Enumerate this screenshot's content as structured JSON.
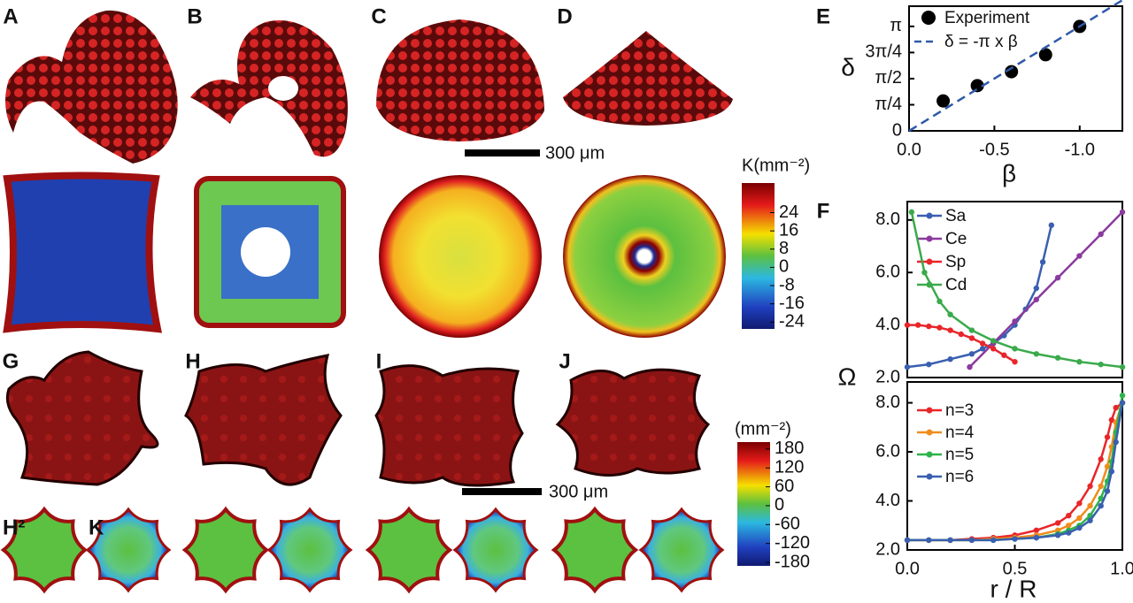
{
  "panel_labels": [
    "A",
    "B",
    "C",
    "D",
    "E",
    "F",
    "G",
    "H",
    "I",
    "J"
  ],
  "scale_bars": [
    "300 μm",
    "300 μm"
  ],
  "subpanel_labels": [
    "H²",
    "K"
  ],
  "colorbars": [
    {
      "title": "K(mm⁻²)",
      "lim": [
        -27,
        37
      ],
      "ticks": [
        24,
        16,
        8,
        0,
        -8,
        -16,
        -24
      ]
    },
    {
      "title": "(mm⁻²)",
      "lim": [
        -191,
        202
      ],
      "ticks": [
        180,
        120,
        60,
        0,
        -60,
        -120,
        -180
      ]
    }
  ],
  "chart_data": [
    {
      "type": "scatter",
      "x_label": "β",
      "y_label": "δ",
      "xlim": [
        0,
        -1.25
      ],
      "ylim": [
        0,
        3.75
      ],
      "xticks": [
        {
          "value": 0,
          "label": "0.0"
        },
        -0.5,
        {
          "value": -1,
          "label": "-1.0"
        }
      ],
      "yticks": [
        0,
        {
          "value": 0.785,
          "label": "π/4"
        },
        {
          "value": 1.571,
          "label": "π/2"
        },
        {
          "value": 2.356,
          "label": "3π/4"
        },
        {
          "value": 3.142,
          "label": "π"
        }
      ],
      "series": [
        {
          "name": "Experiment",
          "color": "#000000",
          "x": [
            -0.2,
            -0.4,
            -0.6,
            -0.8,
            -1.0
          ],
          "values": [
            0.9,
            1.36,
            1.78,
            2.29,
            3.14
          ]
        },
        {
          "name": "δ = -π x β",
          "color": "#2f5aa8",
          "line_style": "dashed",
          "x": [
            0,
            -1.25
          ],
          "values": [
            0,
            3.93
          ]
        }
      ]
    },
    {
      "type": "line",
      "xlim": [
        0,
        1
      ],
      "ylim": [
        2,
        8.7
      ],
      "yticks": [
        {
          "value": 2,
          "label": "2.0"
        },
        {
          "value": 4,
          "label": "4.0"
        },
        {
          "value": 6,
          "label": "6.0"
        },
        {
          "value": 8,
          "label": "8.0"
        }
      ],
      "series": [
        {
          "name": "Sa",
          "color": "#3a5fb0",
          "x": [
            0,
            0.1,
            0.2,
            0.3,
            0.35,
            0.4,
            0.45,
            0.5,
            0.55,
            0.6,
            0.63,
            0.67
          ],
          "values": [
            2.4,
            2.5,
            2.7,
            2.9,
            3.1,
            3.3,
            3.6,
            4.0,
            4.6,
            5.4,
            6.4,
            7.8
          ]
        },
        {
          "name": "Ce",
          "color": "#8b3a9e",
          "x": [
            0.29,
            0.4,
            0.5,
            0.6,
            0.7,
            0.8,
            0.9,
            1.0
          ],
          "values": [
            2.4,
            3.31,
            4.14,
            4.97,
            5.8,
            6.63,
            7.46,
            8.3
          ]
        },
        {
          "name": "Sp",
          "color": "#e8262a",
          "x": [
            0,
            0.05,
            0.1,
            0.15,
            0.2,
            0.25,
            0.3,
            0.35,
            0.4,
            0.45,
            0.5
          ],
          "values": [
            4.0,
            4.0,
            3.95,
            3.9,
            3.8,
            3.65,
            3.5,
            3.3,
            3.1,
            2.85,
            2.6
          ]
        },
        {
          "name": "Cd",
          "color": "#3aaa4c",
          "x": [
            0.02,
            0.08,
            0.15,
            0.2,
            0.3,
            0.4,
            0.5,
            0.6,
            0.7,
            0.8,
            0.9,
            1.0
          ],
          "values": [
            8.3,
            6.0,
            4.9,
            4.4,
            3.8,
            3.4,
            3.1,
            2.9,
            2.75,
            2.6,
            2.5,
            2.4
          ]
        }
      ]
    },
    {
      "type": "line",
      "x_label": "r / R",
      "y_label": "Ω",
      "xlim": [
        0,
        1
      ],
      "ylim": [
        2,
        8.85
      ],
      "xticks": [
        {
          "value": 0,
          "label": "0.0"
        },
        0.5,
        {
          "value": 1,
          "label": "1.0"
        }
      ],
      "yticks": [
        {
          "value": 2,
          "label": "2.0"
        },
        {
          "value": 4,
          "label": "4.0"
        },
        {
          "value": 6,
          "label": "6.0"
        },
        {
          "value": 8,
          "label": "8.0"
        }
      ],
      "series": [
        {
          "name": "n=3",
          "color": "#e8262a",
          "x": [
            0,
            0.1,
            0.2,
            0.3,
            0.4,
            0.5,
            0.6,
            0.7,
            0.75,
            0.8,
            0.85,
            0.9,
            0.93,
            0.95,
            0.97,
            1.0
          ],
          "values": [
            2.4,
            2.4,
            2.4,
            2.45,
            2.5,
            2.6,
            2.8,
            3.1,
            3.4,
            3.9,
            4.6,
            5.7,
            6.6,
            7.3,
            7.8,
            8.0
          ]
        },
        {
          "name": "n=4",
          "color": "#f08c1e",
          "x": [
            0,
            0.1,
            0.2,
            0.3,
            0.4,
            0.5,
            0.6,
            0.7,
            0.75,
            0.8,
            0.85,
            0.9,
            0.93,
            0.95,
            0.97,
            1.0
          ],
          "values": [
            2.4,
            2.4,
            2.4,
            2.4,
            2.45,
            2.5,
            2.6,
            2.8,
            3.0,
            3.3,
            3.8,
            4.6,
            5.4,
            6.2,
            7.2,
            8.0
          ]
        },
        {
          "name": "n=5",
          "color": "#2db34a",
          "x": [
            0,
            0.1,
            0.2,
            0.3,
            0.4,
            0.5,
            0.6,
            0.7,
            0.75,
            0.8,
            0.85,
            0.9,
            0.93,
            0.95,
            0.97,
            1.0
          ],
          "values": [
            2.4,
            2.4,
            2.4,
            2.4,
            2.4,
            2.45,
            2.5,
            2.65,
            2.8,
            3.0,
            3.4,
            4.1,
            4.8,
            5.6,
            6.8,
            8.3
          ]
        },
        {
          "name": "n=6",
          "color": "#3a5fb0",
          "x": [
            0,
            0.1,
            0.2,
            0.3,
            0.4,
            0.5,
            0.6,
            0.7,
            0.75,
            0.8,
            0.85,
            0.9,
            0.93,
            0.95,
            0.97,
            1.0
          ],
          "values": [
            2.4,
            2.4,
            2.4,
            2.4,
            2.4,
            2.45,
            2.5,
            2.6,
            2.7,
            2.9,
            3.2,
            3.8,
            4.4,
            5.2,
            6.4,
            8.0
          ]
        }
      ]
    }
  ]
}
